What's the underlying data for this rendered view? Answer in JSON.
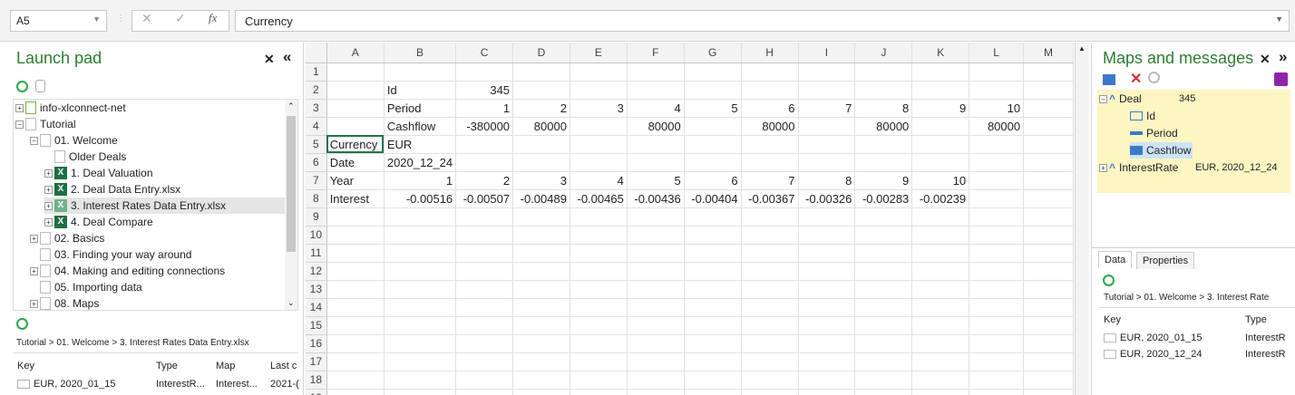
{
  "formula_bar": {
    "name_box": "A5",
    "cancel": "✕",
    "confirm": "✓",
    "fx": "fx",
    "formula": "Currency"
  },
  "launch_pad": {
    "title": "Launch pad",
    "close": "✕",
    "collapse": "«",
    "tree": [
      {
        "label": "info-xlconnect-net",
        "expander": "+",
        "icon": "connection-icon"
      },
      {
        "label": "Tutorial",
        "expander": "−",
        "icon": "folder-icon"
      },
      {
        "label": "01. Welcome",
        "expander": "−",
        "icon": "folder-icon"
      },
      {
        "label": "Older Deals",
        "expander": "",
        "icon": "folder-icon"
      },
      {
        "label": "1. Deal Valuation",
        "expander": "+",
        "icon": "excel-icon"
      },
      {
        "label": "2. Deal Data Entry.xlsx",
        "expander": "+",
        "icon": "excel-icon"
      },
      {
        "label": "3. Interest Rates Data Entry.xlsx",
        "expander": "+",
        "icon": "excel-icon"
      },
      {
        "label": "4. Deal Compare",
        "expander": "+",
        "icon": "excel-icon"
      },
      {
        "label": "02. Basics",
        "expander": "+",
        "icon": "folder-icon"
      },
      {
        "label": "03. Finding your way around",
        "expander": "",
        "icon": "folder-icon"
      },
      {
        "label": "04. Making and editing connections",
        "expander": "+",
        "icon": "folder-icon"
      },
      {
        "label": "05. Importing data",
        "expander": "",
        "icon": "folder-icon"
      },
      {
        "label": "08. Maps",
        "expander": "+",
        "icon": "folder-icon"
      }
    ],
    "breadcrumb": "Tutorial  >  01. Welcome  >  3. Interest Rates Data Entry.xlsx",
    "list_headers": [
      "Key",
      "Type",
      "Map",
      "Last c"
    ],
    "list_rows": [
      [
        "EUR, 2020_01_15",
        "InterestR...",
        "Interest...",
        "2021-("
      ]
    ]
  },
  "sheet": {
    "columns": [
      "A",
      "B",
      "C",
      "D",
      "E",
      "F",
      "G",
      "H",
      "I",
      "J",
      "K",
      "L",
      "M"
    ],
    "rows": [
      [
        "",
        "",
        "",
        "",
        "",
        "",
        "",
        "",
        "",
        "",
        "",
        "",
        ""
      ],
      [
        "",
        "Id",
        "345",
        "",
        "",
        "",
        "",
        "",
        "",
        "",
        "",
        "",
        ""
      ],
      [
        "",
        "Period",
        "1",
        "2",
        "3",
        "4",
        "5",
        "6",
        "7",
        "8",
        "9",
        "10",
        ""
      ],
      [
        "",
        "Cashflow",
        "-380000",
        "80000",
        "",
        "80000",
        "",
        "80000",
        "",
        "80000",
        "",
        "80000",
        ""
      ],
      [
        "Currency",
        "EUR",
        "",
        "",
        "",
        "",
        "",
        "",
        "",
        "",
        "",
        "",
        ""
      ],
      [
        "Date",
        "2020_12_24",
        "",
        "",
        "",
        "",
        "",
        "",
        "",
        "",
        "",
        "",
        ""
      ],
      [
        "Year",
        "1",
        "2",
        "3",
        "4",
        "5",
        "6",
        "7",
        "8",
        "9",
        "10",
        "",
        ""
      ],
      [
        "Interest",
        "-0.00516",
        "-0.00507",
        "-0.00489",
        "-0.00465",
        "-0.00436",
        "-0.00404",
        "-0.00367",
        "-0.00326",
        "-0.00283",
        "-0.00239",
        "",
        ""
      ],
      [
        "",
        "",
        "",
        "",
        "",
        "",
        "",
        "",
        "",
        "",
        "",
        "",
        ""
      ],
      [
        "",
        "",
        "",
        "",
        "",
        "",
        "",
        "",
        "",
        "",
        "",
        "",
        ""
      ],
      [
        "",
        "",
        "",
        "",
        "",
        "",
        "",
        "",
        "",
        "",
        "",
        "",
        ""
      ],
      [
        "",
        "",
        "",
        "",
        "",
        "",
        "",
        "",
        "",
        "",
        "",
        "",
        ""
      ],
      [
        "",
        "",
        "",
        "",
        "",
        "",
        "",
        "",
        "",
        "",
        "",
        "",
        ""
      ],
      [
        "",
        "",
        "",
        "",
        "",
        "",
        "",
        "",
        "",
        "",
        "",
        "",
        ""
      ],
      [
        "",
        "",
        "",
        "",
        "",
        "",
        "",
        "",
        "",
        "",
        "",
        "",
        ""
      ],
      [
        "",
        "",
        "",
        "",
        "",
        "",
        "",
        "",
        "",
        "",
        "",
        "",
        ""
      ],
      [
        "",
        "",
        "",
        "",
        "",
        "",
        "",
        "",
        "",
        "",
        "",
        "",
        ""
      ],
      [
        "",
        "",
        "",
        "",
        "",
        "",
        "",
        "",
        "",
        "",
        "",
        "",
        ""
      ],
      [
        "",
        "",
        "",
        "",
        "",
        "",
        "",
        "",
        "",
        "",
        "",
        "",
        ""
      ]
    ]
  },
  "maps_panel": {
    "title": "Maps and messages",
    "close": "✕",
    "expand": "»",
    "tree": [
      {
        "label": "Deal",
        "value": "345",
        "expander": "−"
      },
      {
        "label": "Id",
        "value": "",
        "expander": ""
      },
      {
        "label": "Period",
        "value": "",
        "expander": ""
      },
      {
        "label": "Cashflow",
        "value": "",
        "expander": ""
      },
      {
        "label": "InterestRate",
        "value": "EUR, 2020_12_24",
        "expander": "+"
      }
    ],
    "tabs": [
      "Data",
      "Properties"
    ],
    "breadcrumb": "Tutorial  >  01. Welcome  >  3. Interest Rate",
    "list_headers": [
      "Key",
      "Type"
    ],
    "list_rows": [
      [
        "EUR, 2020_01_15",
        "InterestR"
      ],
      [
        "EUR, 2020_12_24",
        "InterestR"
      ]
    ]
  },
  "colors": {
    "accent_green": "#2e7d32",
    "highlight_yellow": "#fdf6c3",
    "excel_green": "#1d6f42"
  }
}
